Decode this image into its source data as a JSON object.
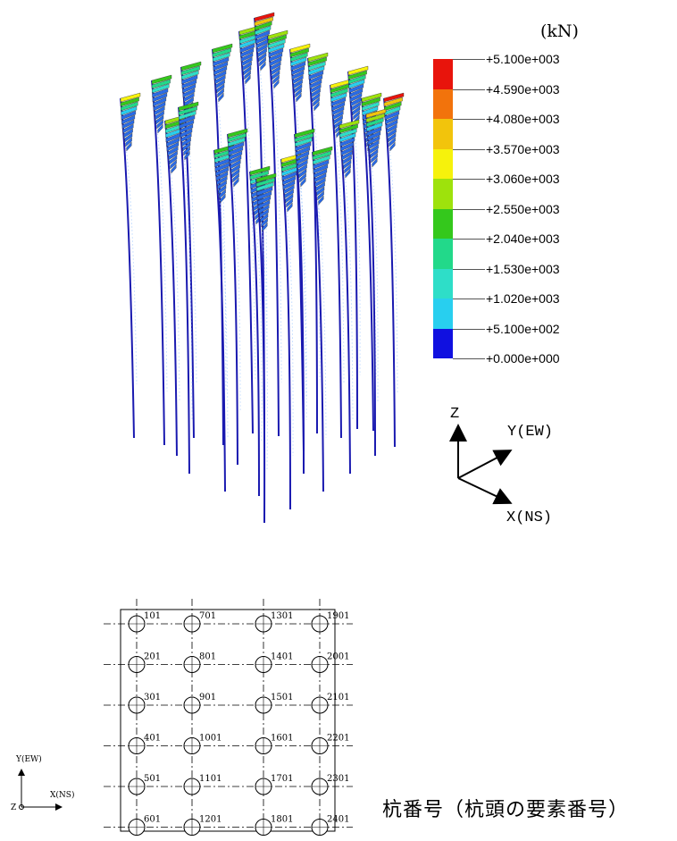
{
  "legend": {
    "unit": "(kN)",
    "levels": [
      {
        "label": "+5.100e+003",
        "color": "#e8140c"
      },
      {
        "label": "+4.590e+003",
        "color": "#f2730c"
      },
      {
        "label": "+4.080e+003",
        "color": "#f2c40c"
      },
      {
        "label": "+3.570e+003",
        "color": "#f6f20c"
      },
      {
        "label": "+3.060e+003",
        "color": "#9ee20c"
      },
      {
        "label": "+2.550e+003",
        "color": "#34c81c"
      },
      {
        "label": "+2.040e+003",
        "color": "#22d98a"
      },
      {
        "label": "+1.530e+003",
        "color": "#2edec8"
      },
      {
        "label": "+1.020e+003",
        "color": "#28cfef"
      },
      {
        "label": "+5.100e+002",
        "color": "#2a6be6"
      },
      {
        "label": "+0.000e+000",
        "color": "#1010e0"
      }
    ]
  },
  "view_axes": {
    "z": "Z",
    "y": "Y(EW)",
    "x": "X(NS)"
  },
  "plan": {
    "rows": [
      [
        "101",
        "701",
        "1301",
        "1901"
      ],
      [
        "201",
        "801",
        "1401",
        "2001"
      ],
      [
        "301",
        "901",
        "1501",
        "2101"
      ],
      [
        "401",
        "1001",
        "1601",
        "2201"
      ],
      [
        "501",
        "1101",
        "1701",
        "2301"
      ],
      [
        "601",
        "1201",
        "1801",
        "2401"
      ]
    ],
    "axis_y": "Y(EW)",
    "axis_x": "X(NS)",
    "axis_z": "Z"
  },
  "caption": "杭番号（杭頭の要素番号）"
}
